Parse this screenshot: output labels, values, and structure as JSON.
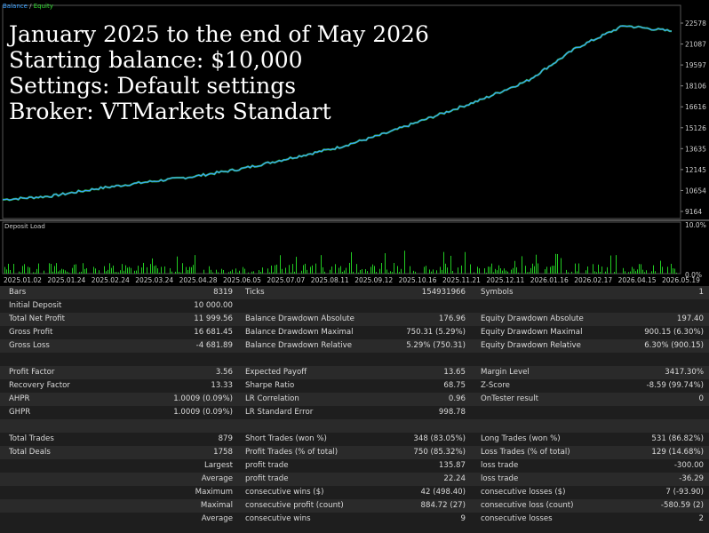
{
  "legend": {
    "balance": "Balance",
    "separator": "/",
    "equity": "Equity"
  },
  "overlay": {
    "line1": "January 2025 to the end of May 2026",
    "line2": "Starting balance: $10,000",
    "line3": "Settings: Default settings",
    "line4": "Broker: VTMarkets Standart"
  },
  "price_axis": [
    "22578",
    "21087",
    "19597",
    "18106",
    "16616",
    "15126",
    "13635",
    "12145",
    "10654",
    "9164"
  ],
  "deposit_load": {
    "label": "Deposit Load",
    "top": "10.0%",
    "bottom": "0.0%"
  },
  "date_axis": [
    "2025.01.02",
    "2025.01.24",
    "2025.02.24",
    "2025.03.24",
    "2025.04.28",
    "2025.06.05",
    "2025.07.07",
    "2025.08.11",
    "2025.09.12",
    "2025.10.16",
    "2025.11.21",
    "2025.12.11",
    "2026.01.16",
    "2026.02.17",
    "2026.04.15",
    "2026.05.19"
  ],
  "colors": {
    "balance": "#3aa0ff",
    "equity": "#33dd33",
    "deposit": "#22cc22",
    "background": "#000000"
  },
  "chart_data": {
    "type": "line",
    "series": [
      {
        "name": "Balance",
        "x": [
          "2025.01.02",
          "2025.02.24",
          "2025.04.28",
          "2025.06.05",
          "2025.07.07",
          "2025.08.11",
          "2025.09.12",
          "2025.10.16",
          "2025.11.21",
          "2025.12.11",
          "2026.01.16",
          "2026.02.17",
          "2026.04.15",
          "2026.05.12",
          "2026.05.19"
        ],
        "values": [
          10000,
          10250,
          10800,
          11250,
          11650,
          12200,
          12950,
          13700,
          14700,
          15900,
          17100,
          18500,
          20800,
          22400,
          22000
        ]
      }
    ],
    "ylim": [
      9164,
      22578
    ]
  },
  "report": {
    "r1": {
      "l1": "Bars",
      "v1": "8319",
      "l2": "Ticks",
      "v2": "154931966",
      "l3": "Symbols",
      "v3": "1"
    },
    "r2": {
      "l1": "Initial Deposit",
      "v1": "10 000.00"
    },
    "r3": {
      "l1": "Total Net Profit",
      "v1": "11 999.56",
      "l2": "Balance Drawdown Absolute",
      "v2": "176.96",
      "l3": "Equity Drawdown Absolute",
      "v3": "197.40"
    },
    "r4": {
      "l1": "Gross Profit",
      "v1": "16 681.45",
      "l2": "Balance Drawdown Maximal",
      "v2": "750.31 (5.29%)",
      "l3": "Equity Drawdown Maximal",
      "v3": "900.15 (6.30%)"
    },
    "r5": {
      "l1": "Gross Loss",
      "v1": "-4 681.89",
      "l2": "Balance Drawdown Relative",
      "v2": "5.29% (750.31)",
      "l3": "Equity Drawdown Relative",
      "v3": "6.30% (900.15)"
    },
    "r7": {
      "l1": "Profit Factor",
      "v1": "3.56",
      "l2": "Expected Payoff",
      "v2": "13.65",
      "l3": "Margin Level",
      "v3": "3417.30%"
    },
    "r8": {
      "l1": "Recovery Factor",
      "v1": "13.33",
      "l2": "Sharpe Ratio",
      "v2": "68.75",
      "l3": "Z-Score",
      "v3": "-8.59 (99.74%)"
    },
    "r9": {
      "l1": "AHPR",
      "v1": "1.0009 (0.09%)",
      "l2": "LR Correlation",
      "v2": "0.96",
      "l3": "OnTester result",
      "v3": "0"
    },
    "r10": {
      "l1": "GHPR",
      "v1": "1.0009 (0.09%)",
      "l2": "LR Standard Error",
      "v2": "998.78"
    },
    "r12": {
      "l1": "Total Trades",
      "v1": "879",
      "l2": "Short Trades (won %)",
      "v2": "348 (83.05%)",
      "l3": "Long Trades (won %)",
      "v3": "531 (86.82%)"
    },
    "r13": {
      "l1": "Total Deals",
      "v1": "1758",
      "l2": "Profit Trades (% of total)",
      "v2": "750 (85.32%)",
      "l3": "Loss Trades (% of total)",
      "v3": "129 (14.68%)"
    },
    "r14": {
      "lr": "Largest",
      "l2": "profit trade",
      "v2": "135.87",
      "l3": "loss trade",
      "v3": "-300.00"
    },
    "r15": {
      "lr": "Average",
      "l2": "profit trade",
      "v2": "22.24",
      "l3": "loss trade",
      "v3": "-36.29"
    },
    "r16": {
      "lr": "Maximum",
      "l2": "consecutive wins ($)",
      "v2": "42 (498.40)",
      "l3": "consecutive losses ($)",
      "v3": "7 (-93.90)"
    },
    "r17": {
      "lr": "Maximal",
      "l2": "consecutive profit (count)",
      "v2": "884.72 (27)",
      "l3": "consecutive loss (count)",
      "v3": "-580.59 (2)"
    },
    "r18": {
      "lr": "Average",
      "l2": "consecutive wins",
      "v2": "9",
      "l3": "consecutive losses",
      "v3": "2"
    }
  }
}
